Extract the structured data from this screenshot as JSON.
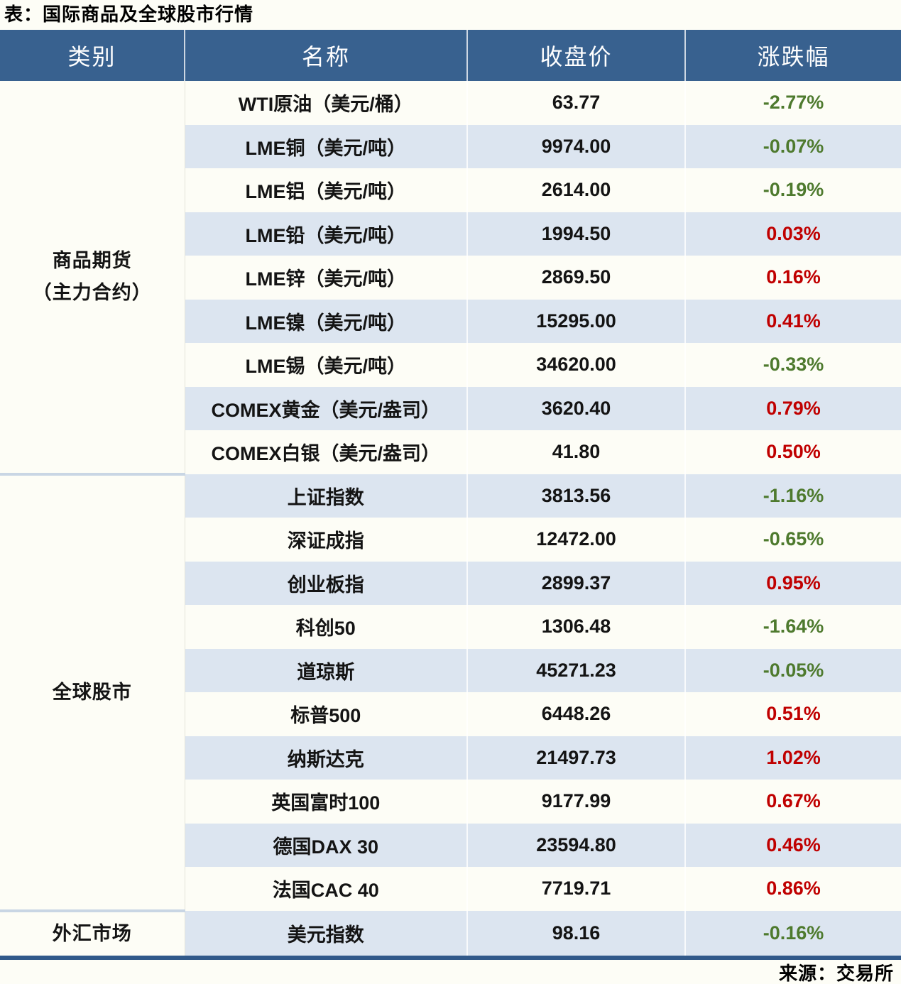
{
  "title": "表：国际商品及全球股市行情",
  "source": "来源：交易所",
  "colors": {
    "header_bg": "#38618F",
    "row_bg": "#FDFDF6",
    "row_alt_bg": "#DCE5F0",
    "up": "#C00000",
    "down": "#4E7A2E",
    "group_separator": "#C9D6E4",
    "bottom_border": "#31598A"
  },
  "table": {
    "headers": [
      "类别",
      "名称",
      "收盘价",
      "涨跌幅"
    ],
    "groups": [
      {
        "category_lines": [
          "商品期货",
          "（主力合约）"
        ],
        "rows": [
          {
            "name": "WTI原油（美元/桶）",
            "close": "63.77",
            "change": "-2.77%",
            "trend": "down"
          },
          {
            "name": "LME铜（美元/吨）",
            "close": "9974.00",
            "change": "-0.07%",
            "trend": "down"
          },
          {
            "name": "LME铝（美元/吨）",
            "close": "2614.00",
            "change": "-0.19%",
            "trend": "down"
          },
          {
            "name": "LME铅（美元/吨）",
            "close": "1994.50",
            "change": "0.03%",
            "trend": "up"
          },
          {
            "name": "LME锌（美元/吨）",
            "close": "2869.50",
            "change": "0.16%",
            "trend": "up"
          },
          {
            "name": "LME镍（美元/吨）",
            "close": "15295.00",
            "change": "0.41%",
            "trend": "up"
          },
          {
            "name": "LME锡（美元/吨）",
            "close": "34620.00",
            "change": "-0.33%",
            "trend": "down"
          },
          {
            "name": "COMEX黄金（美元/盎司）",
            "close": "3620.40",
            "change": "0.79%",
            "trend": "up"
          },
          {
            "name": "COMEX白银（美元/盎司）",
            "close": "41.80",
            "change": "0.50%",
            "trend": "up"
          }
        ]
      },
      {
        "category_lines": [
          "全球股市"
        ],
        "rows": [
          {
            "name": "上证指数",
            "close": "3813.56",
            "change": "-1.16%",
            "trend": "down"
          },
          {
            "name": "深证成指",
            "close": "12472.00",
            "change": "-0.65%",
            "trend": "down"
          },
          {
            "name": "创业板指",
            "close": "2899.37",
            "change": "0.95%",
            "trend": "up"
          },
          {
            "name": "科创50",
            "close": "1306.48",
            "change": "-1.64%",
            "trend": "down"
          },
          {
            "name": "道琼斯",
            "close": "45271.23",
            "change": "-0.05%",
            "trend": "down"
          },
          {
            "name": "标普500",
            "close": "6448.26",
            "change": "0.51%",
            "trend": "up"
          },
          {
            "name": "纳斯达克",
            "close": "21497.73",
            "change": "1.02%",
            "trend": "up"
          },
          {
            "name": "英国富时100",
            "close": "9177.99",
            "change": "0.67%",
            "trend": "up"
          },
          {
            "name": "德国DAX 30",
            "close": "23594.80",
            "change": "0.46%",
            "trend": "up"
          },
          {
            "name": "法国CAC 40",
            "close": "7719.71",
            "change": "0.86%",
            "trend": "up"
          }
        ]
      },
      {
        "category_lines": [
          "外汇市场"
        ],
        "rows": [
          {
            "name": "美元指数",
            "close": "98.16",
            "change": "-0.16%",
            "trend": "down"
          }
        ]
      }
    ]
  }
}
